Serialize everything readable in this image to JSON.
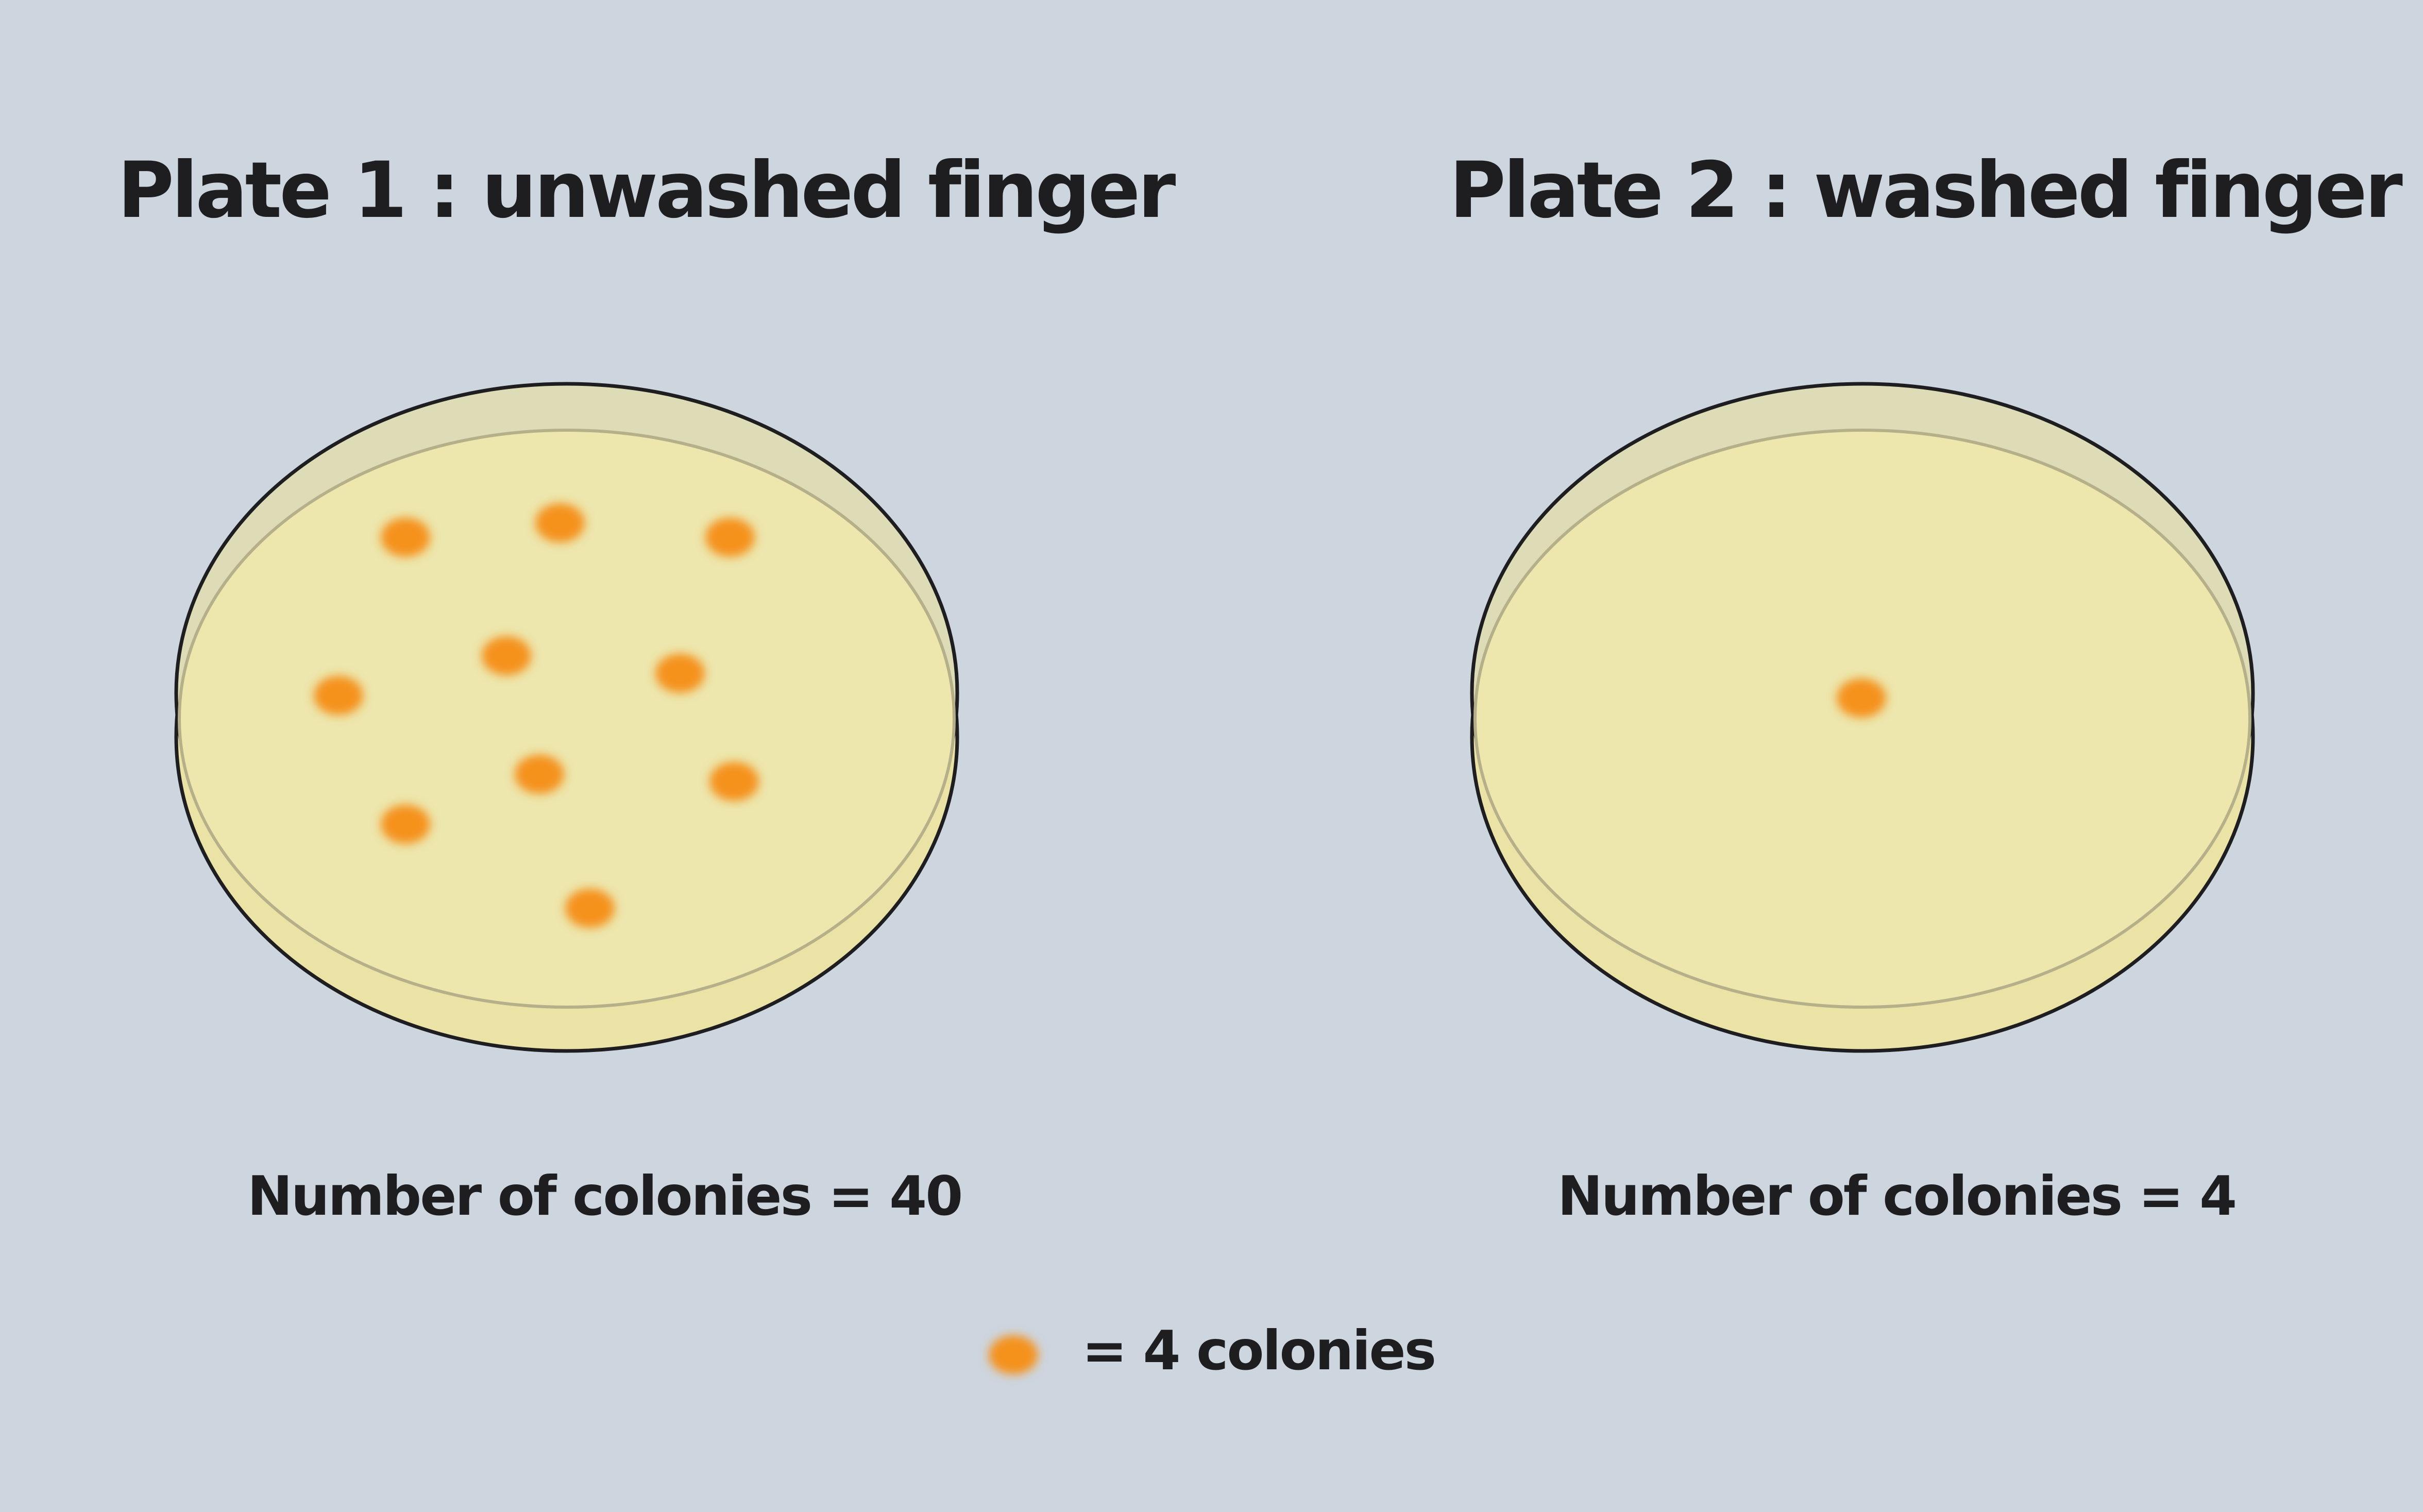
{
  "plates": [
    {
      "title": "Plate 1 : unwashed finger",
      "count_label": "Number of colonies = 40",
      "colony_count": 40,
      "dots_shown": 10
    },
    {
      "title": "Plate 2 : washed finger",
      "count_label": "Number of colonies = 4",
      "colony_count": 4,
      "dots_shown": 1
    }
  ],
  "legend": {
    "label": "= 4 colonies",
    "colonies_per_dot": 4
  },
  "colors": {
    "background": "#cdd5df",
    "agar": "#ede6ad",
    "agar_rim": "#e8e2b0",
    "outline": "#1e1e21",
    "colony": "#f5921e"
  }
}
